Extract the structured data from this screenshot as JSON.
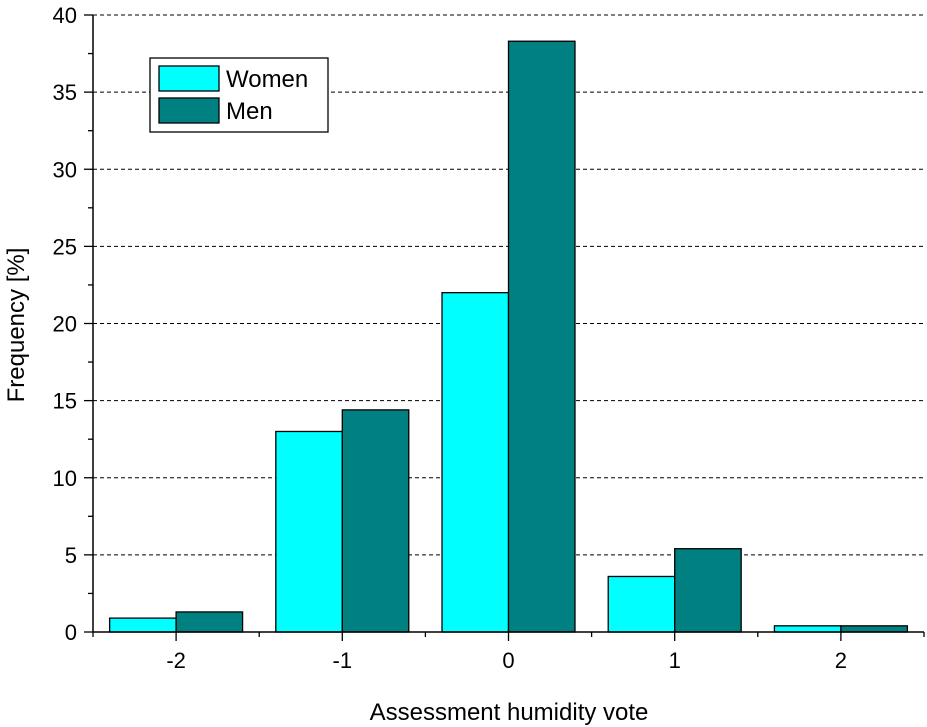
{
  "chart_data": {
    "type": "bar",
    "title": "",
    "xlabel": "Assessment humidity vote",
    "ylabel": "Frequency [%]",
    "categories": [
      "-2",
      "-1",
      "0",
      "1",
      "2"
    ],
    "x": [
      -2,
      -1,
      0,
      1,
      2
    ],
    "series": [
      {
        "name": "Women",
        "values": [
          0.9,
          13.0,
          22.0,
          3.6,
          0.4
        ],
        "color": "#00ffff"
      },
      {
        "name": "Men",
        "values": [
          1.3,
          14.4,
          38.3,
          5.4,
          0.4
        ],
        "color": "#008080"
      }
    ],
    "ylim": [
      0,
      40
    ],
    "xlim": [
      -2.5,
      2.5
    ],
    "yticks": [
      0,
      5,
      10,
      15,
      20,
      25,
      30,
      35,
      40
    ],
    "ytick_labels": [
      "0",
      "5",
      "10",
      "15",
      "20",
      "25",
      "30",
      "35",
      "40"
    ],
    "grid": "horizontal dashed",
    "legend_position": "top-left"
  }
}
